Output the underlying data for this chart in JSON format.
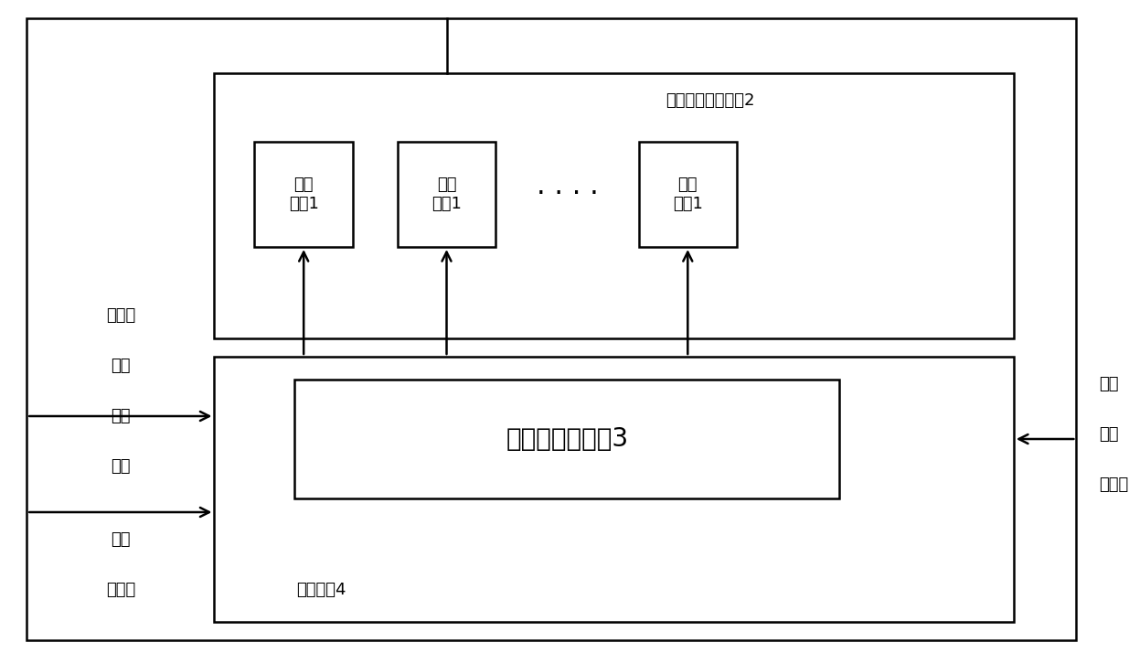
{
  "bg_color": "#ffffff",
  "line_color": "#000000",
  "text_color": "#000000",
  "font_size": 13,
  "font_size_large": 20,
  "font_size_small": 12,
  "temp_box_label": "温度应力施加装置2",
  "ctrl_box_label": "控制电路4",
  "elec_box_label": "电应力施加装置3",
  "gyro_label": "激光\n陀螺1",
  "left_text_group1": [
    "模电压",
    "光强",
    "拍频",
    "光强"
  ],
  "left_text_group2": [
    "拍频",
    "模电压"
  ],
  "right_text_group": [
    "光强",
    "拍频",
    "模电压"
  ],
  "dots": "· · ·"
}
